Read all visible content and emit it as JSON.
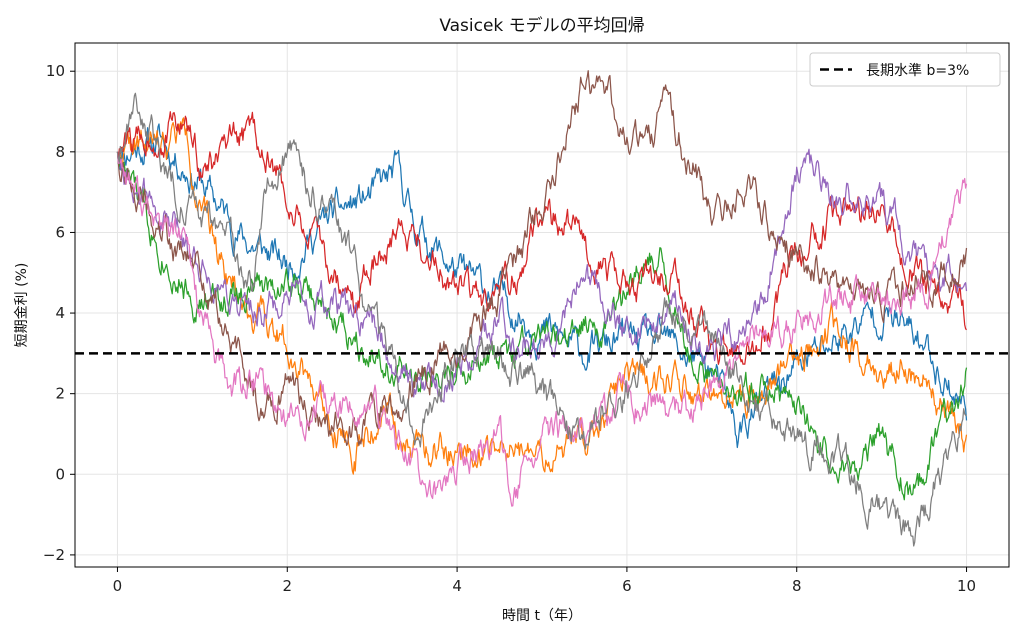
{
  "chart_data": {
    "type": "line",
    "title": "Vasicek モデルの平均回帰",
    "xlabel": "時間 t（年）",
    "ylabel": "短期金利 (%)",
    "xlim": [
      -0.5,
      10.5
    ],
    "ylim": [
      -2.3,
      10.7
    ],
    "x_ticks": [
      0,
      2,
      4,
      6,
      8,
      10
    ],
    "y_ticks": [
      -2,
      0,
      2,
      4,
      6,
      8,
      10
    ],
    "grid": true,
    "legend_position": "top-right",
    "reference_line": {
      "name": "長期水準 b=3%",
      "y": 3.0,
      "color": "#000000",
      "style": "dashed"
    },
    "series": [
      {
        "color": "#1f77b4",
        "seed": 11,
        "points": [
          [
            0,
            8.0
          ],
          [
            0.5,
            8.3
          ],
          [
            1,
            7.2
          ],
          [
            1.5,
            5.8
          ],
          [
            2,
            5.2
          ],
          [
            2.5,
            6.4
          ],
          [
            3,
            6.9
          ],
          [
            3.3,
            7.5
          ],
          [
            3.5,
            6.2
          ],
          [
            4,
            5.0
          ],
          [
            4.5,
            4.4
          ],
          [
            5,
            3.6
          ],
          [
            5.5,
            3.0
          ],
          [
            6,
            3.4
          ],
          [
            6.5,
            3.2
          ],
          [
            7,
            2.6
          ],
          [
            7.3,
            1.0
          ],
          [
            7.6,
            1.8
          ],
          [
            8,
            2.7
          ],
          [
            8.5,
            3.4
          ],
          [
            9,
            4.1
          ],
          [
            9.5,
            3.2
          ],
          [
            10,
            1.6
          ]
        ]
      },
      {
        "color": "#ff7f0e",
        "seed": 22,
        "points": [
          [
            0,
            8.0
          ],
          [
            0.5,
            8.1
          ],
          [
            0.8,
            8.6
          ],
          [
            1,
            6.4
          ],
          [
            1.5,
            4.2
          ],
          [
            2,
            3.4
          ],
          [
            2.4,
            2.0
          ],
          [
            2.8,
            0.6
          ],
          [
            3.2,
            1.4
          ],
          [
            3.6,
            0.4
          ],
          [
            4,
            0.7
          ],
          [
            4.5,
            0.6
          ],
          [
            5,
            0.3
          ],
          [
            5.5,
            0.9
          ],
          [
            6,
            2.3
          ],
          [
            6.5,
            2.6
          ],
          [
            7,
            1.4
          ],
          [
            7.4,
            1.9
          ],
          [
            8,
            2.9
          ],
          [
            8.4,
            3.6
          ],
          [
            9,
            2.7
          ],
          [
            9.5,
            2.4
          ],
          [
            10,
            0.8
          ]
        ]
      },
      {
        "color": "#2ca02c",
        "seed": 33,
        "points": [
          [
            0,
            8.0
          ],
          [
            0.3,
            6.5
          ],
          [
            0.8,
            4.7
          ],
          [
            1,
            4.2
          ],
          [
            1.5,
            4.5
          ],
          [
            2,
            4.9
          ],
          [
            2.5,
            3.9
          ],
          [
            3,
            3.2
          ],
          [
            3.5,
            2.2
          ],
          [
            4,
            2.4
          ],
          [
            4.5,
            2.8
          ],
          [
            5,
            3.1
          ],
          [
            5.5,
            3.6
          ],
          [
            6,
            4.4
          ],
          [
            6.4,
            5.5
          ],
          [
            6.8,
            2.5
          ],
          [
            7,
            2.1
          ],
          [
            7.5,
            2.2
          ],
          [
            8,
            1.7
          ],
          [
            8.5,
            0.0
          ],
          [
            9,
            0.8
          ],
          [
            9.4,
            -0.6
          ],
          [
            10,
            2.6
          ]
        ]
      },
      {
        "color": "#d62728",
        "seed": 44,
        "points": [
          [
            0,
            8.0
          ],
          [
            0.4,
            8.4
          ],
          [
            0.8,
            8.7
          ],
          [
            1,
            7.5
          ],
          [
            1.4,
            8.1
          ],
          [
            1.6,
            8.6
          ],
          [
            2,
            6.9
          ],
          [
            2.4,
            5.4
          ],
          [
            2.8,
            4.1
          ],
          [
            3,
            5.4
          ],
          [
            3.4,
            6.2
          ],
          [
            4,
            4.6
          ],
          [
            4.5,
            4.0
          ],
          [
            5,
            6.5
          ],
          [
            5.5,
            5.8
          ],
          [
            6,
            4.6
          ],
          [
            6.5,
            5.0
          ],
          [
            7,
            3.1
          ],
          [
            7.5,
            2.8
          ],
          [
            8,
            5.4
          ],
          [
            8.5,
            6.6
          ],
          [
            9,
            6.4
          ],
          [
            9.5,
            4.7
          ],
          [
            10,
            4.0
          ]
        ]
      },
      {
        "color": "#9467bd",
        "seed": 55,
        "points": [
          [
            0,
            8.0
          ],
          [
            0.4,
            6.6
          ],
          [
            1,
            5.3
          ],
          [
            1.5,
            4.1
          ],
          [
            2,
            4.2
          ],
          [
            2.5,
            4.1
          ],
          [
            3,
            3.6
          ],
          [
            3.5,
            2.2
          ],
          [
            4,
            2.6
          ],
          [
            4.5,
            3.8
          ],
          [
            5,
            3.2
          ],
          [
            5.5,
            5.0
          ],
          [
            6,
            3.4
          ],
          [
            6.5,
            4.1
          ],
          [
            7,
            3.0
          ],
          [
            7.5,
            3.7
          ],
          [
            8,
            7.6
          ],
          [
            8.5,
            6.9
          ],
          [
            9,
            6.7
          ],
          [
            9.5,
            5.0
          ],
          [
            10,
            4.8
          ]
        ]
      },
      {
        "color": "#8c564b",
        "seed": 66,
        "points": [
          [
            0,
            8.0
          ],
          [
            0.5,
            6.0
          ],
          [
            1,
            4.9
          ],
          [
            1.3,
            3.4
          ],
          [
            1.7,
            1.6
          ],
          [
            2,
            2.4
          ],
          [
            2.4,
            1.3
          ],
          [
            2.8,
            1.2
          ],
          [
            3.2,
            1.8
          ],
          [
            3.6,
            2.4
          ],
          [
            4,
            3.1
          ],
          [
            4.5,
            4.3
          ],
          [
            5,
            6.8
          ],
          [
            5.5,
            9.8
          ],
          [
            5.8,
            9.5
          ],
          [
            6,
            8.2
          ],
          [
            6.5,
            9.0
          ],
          [
            7,
            6.7
          ],
          [
            7.5,
            6.8
          ],
          [
            8,
            5.3
          ],
          [
            8.5,
            4.7
          ],
          [
            9,
            4.3
          ],
          [
            9.5,
            5.0
          ],
          [
            10,
            5.3
          ]
        ]
      },
      {
        "color": "#e377c2",
        "seed": 77,
        "points": [
          [
            0,
            8.0
          ],
          [
            0.4,
            6.3
          ],
          [
            0.8,
            5.7
          ],
          [
            1,
            3.8
          ],
          [
            1.3,
            2.1
          ],
          [
            1.7,
            2.3
          ],
          [
            2,
            1.4
          ],
          [
            2.5,
            1.6
          ],
          [
            3,
            1.6
          ],
          [
            3.3,
            0.9
          ],
          [
            3.7,
            -0.7
          ],
          [
            4,
            0.2
          ],
          [
            4.5,
            0.8
          ],
          [
            4.7,
            -0.5
          ],
          [
            5,
            0.9
          ],
          [
            5.5,
            1.0
          ],
          [
            6,
            1.9
          ],
          [
            6.5,
            1.4
          ],
          [
            7,
            1.9
          ],
          [
            7.5,
            3.4
          ],
          [
            8,
            3.8
          ],
          [
            8.5,
            4.4
          ],
          [
            9,
            4.0
          ],
          [
            9.5,
            4.6
          ],
          [
            10,
            7.0
          ]
        ]
      },
      {
        "color": "#7f7f7f",
        "seed": 88,
        "points": [
          [
            0,
            8.0
          ],
          [
            0.2,
            9.5
          ],
          [
            0.5,
            7.9
          ],
          [
            0.9,
            6.5
          ],
          [
            1.2,
            6.2
          ],
          [
            1.6,
            4.6
          ],
          [
            1.8,
            7.4
          ],
          [
            2,
            8.1
          ],
          [
            2.4,
            6.5
          ],
          [
            2.8,
            5.1
          ],
          [
            3.2,
            2.6
          ],
          [
            3.5,
            1.0
          ],
          [
            4,
            3.0
          ],
          [
            4.5,
            2.9
          ],
          [
            5,
            2.0
          ],
          [
            5.5,
            0.8
          ],
          [
            6,
            2.1
          ],
          [
            6.5,
            4.2
          ],
          [
            7,
            3.5
          ],
          [
            7.5,
            1.6
          ],
          [
            8,
            1.0
          ],
          [
            8.5,
            0.5
          ],
          [
            9,
            -0.8
          ],
          [
            9.4,
            -1.6
          ],
          [
            10,
            1.4
          ]
        ]
      }
    ]
  }
}
